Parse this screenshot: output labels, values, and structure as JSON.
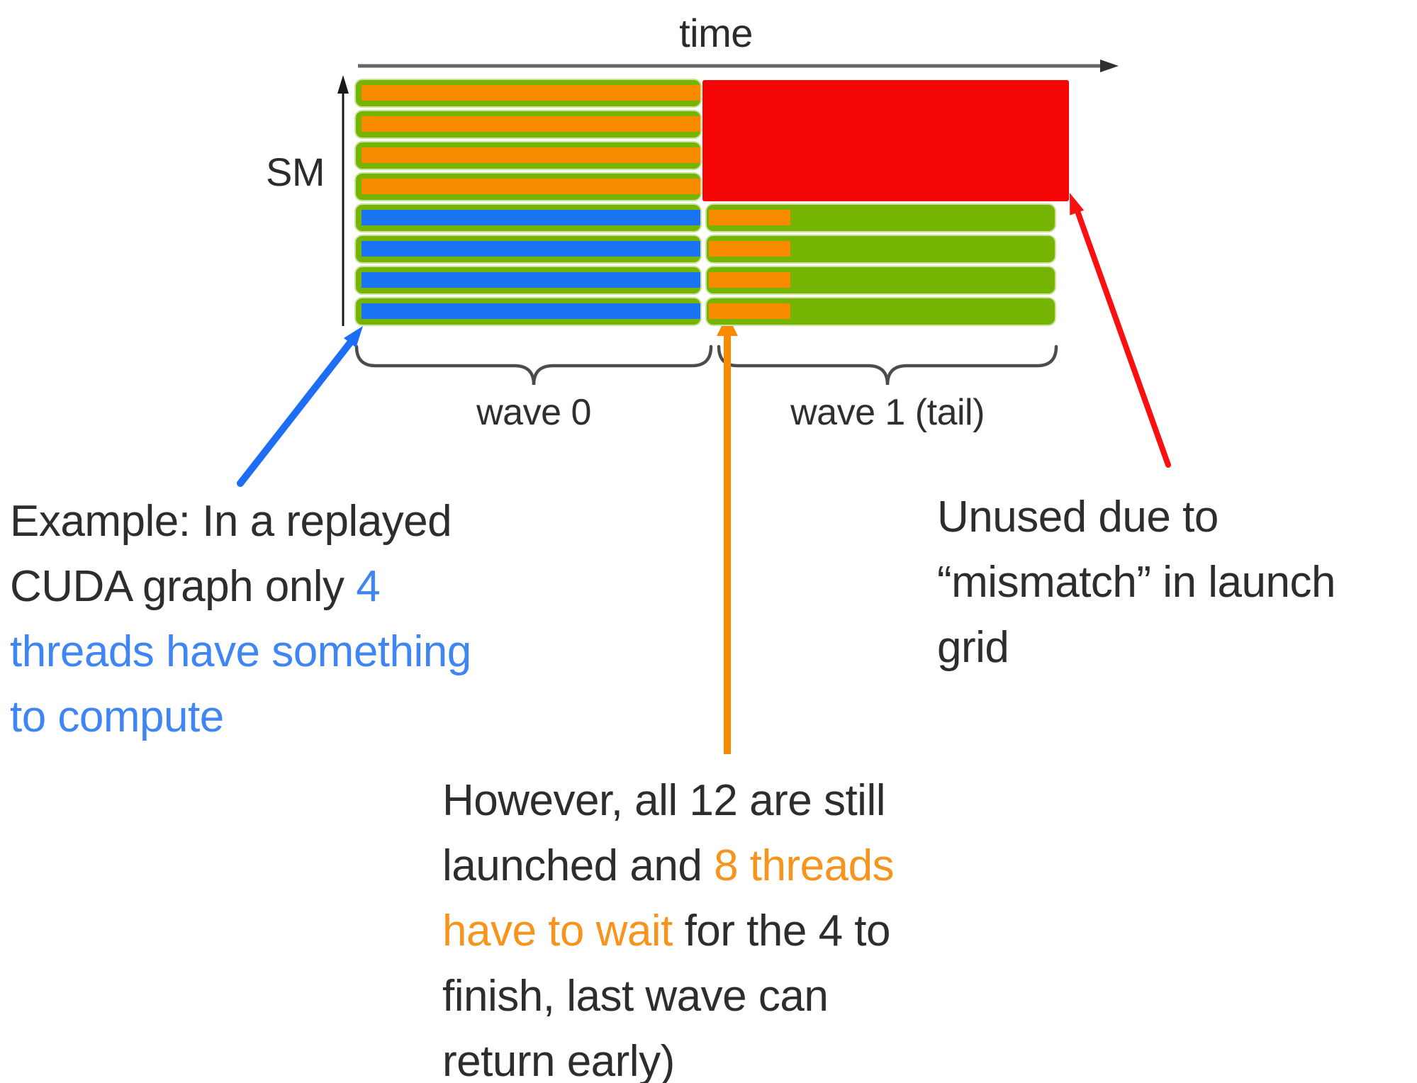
{
  "colors": {
    "green": "#76b404",
    "green_edge": "#c9e398",
    "orange": "#f88b00",
    "blue": "#1a73f2",
    "red": "#f40606",
    "arrow_blue": "#1d6ef5",
    "arrow_orange": "#f88b00",
    "arrow_red": "#fb0f0f",
    "text_dark": "#2d2d2d",
    "text_blue": "#3f86f4",
    "text_orange": "#f7941d",
    "axis_gray": "#666666",
    "axis_black": "#1a1a1a",
    "brace_gray": "#4c4c4c"
  },
  "diagram": {
    "time_label": "time",
    "sm_label": "SM",
    "wave0_label": "wave 0",
    "wave1_label": "wave 1 (tail)",
    "rows": [
      {
        "wave0_stripe": "orange",
        "tail": false
      },
      {
        "wave0_stripe": "orange",
        "tail": false
      },
      {
        "wave0_stripe": "orange",
        "tail": false
      },
      {
        "wave0_stripe": "orange",
        "tail": false
      },
      {
        "wave0_stripe": "blue",
        "tail": true
      },
      {
        "wave0_stripe": "blue",
        "tail": true
      },
      {
        "wave0_stripe": "blue",
        "tail": true
      },
      {
        "wave0_stripe": "blue",
        "tail": true
      }
    ],
    "sm_count": 8,
    "waves": 2,
    "threads_total": 12,
    "threads_active": 4,
    "threads_waiting": 8
  },
  "notes": {
    "example": {
      "l1": "Example: In a replayed",
      "l2a": "CUDA graph only ",
      "l2b": "4",
      "l3": "threads have something",
      "l4": "to compute"
    },
    "however": {
      "l1": "However, all 12 are still",
      "l2a": "launched and ",
      "l2b": "8 threads",
      "l3a": "have to wait",
      "l3b": " for the 4 to",
      "l4": "finish, last wave can",
      "l5": "return early)"
    },
    "unused": {
      "l1": "Unused due to",
      "l2": "“mismatch” in launch",
      "l3": "grid"
    }
  }
}
